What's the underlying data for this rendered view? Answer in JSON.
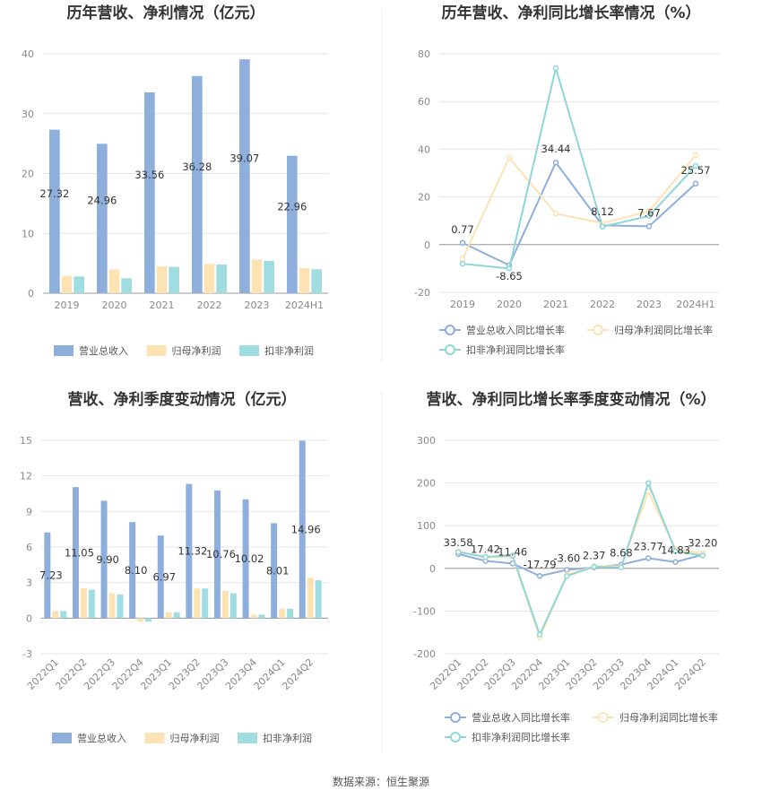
{
  "colors": {
    "revenue": "#8eaedb",
    "net_profit": "#fde3b4",
    "deducted_profit": "#9fdde0",
    "revenue_growth": "#8eaedb",
    "net_profit_growth": "#fde3b4",
    "deducted_profit_growth": "#8fd6d6",
    "grid": "#e6e6e6",
    "axis": "#999999"
  },
  "footer": "数据来源：恒生聚源",
  "chart_data": [
    {
      "id": "annual-amount",
      "type": "bar",
      "title": "历年营收、净利情况（亿元）",
      "categories": [
        "2019",
        "2020",
        "2021",
        "2022",
        "2023",
        "2024H1"
      ],
      "yticks": [
        0,
        10,
        20,
        30,
        40
      ],
      "ylim": [
        0,
        40
      ],
      "series": [
        {
          "name": "营业总收入",
          "values": [
            27.32,
            24.96,
            33.56,
            36.28,
            39.07,
            22.96
          ],
          "labels": [
            "27.32",
            "24.96",
            "33.56",
            "36.28",
            "39.07",
            "22.96"
          ]
        },
        {
          "name": "归母净利润",
          "values": [
            2.9,
            4.0,
            4.5,
            4.9,
            5.6,
            4.2
          ]
        },
        {
          "name": "扣非净利润",
          "values": [
            2.8,
            2.5,
            4.4,
            4.8,
            5.4,
            4.0
          ]
        }
      ]
    },
    {
      "id": "annual-growth",
      "type": "line",
      "title": "历年营收、净利同比增长率情况（%）",
      "categories": [
        "2019",
        "2020",
        "2021",
        "2022",
        "2023",
        "2024H1"
      ],
      "yticks": [
        -20,
        0,
        20,
        40,
        60,
        80
      ],
      "ylim": [
        -20,
        80
      ],
      "series": [
        {
          "name": "营业总收入同比增长率",
          "values": [
            0.77,
            -8.65,
            34.44,
            8.12,
            7.67,
            25.57
          ],
          "labels": [
            "0.77",
            "-8.65",
            "34.44",
            "8.12",
            "7.67",
            "25.57"
          ]
        },
        {
          "name": "归母净利润同比增长率",
          "values": [
            -6.0,
            36.5,
            13.0,
            9.0,
            14.0,
            37.5
          ]
        },
        {
          "name": "扣非净利润同比增长率",
          "values": [
            -8.0,
            -10.0,
            74.0,
            7.5,
            12.0,
            33.0
          ]
        }
      ]
    },
    {
      "id": "quarterly-amount",
      "type": "bar",
      "title": "营收、净利季度变动情况（亿元）",
      "categories": [
        "2022Q1",
        "2022Q2",
        "2022Q3",
        "2022Q4",
        "2023Q1",
        "2023Q2",
        "2023Q3",
        "2023Q4",
        "2024Q1",
        "2024Q2"
      ],
      "yticks": [
        -3,
        0,
        3,
        6,
        9,
        12,
        15
      ],
      "ylim": [
        -3,
        15
      ],
      "series": [
        {
          "name": "营业总收入",
          "values": [
            7.23,
            11.05,
            9.9,
            8.1,
            6.97,
            11.32,
            10.76,
            10.02,
            8.01,
            14.96
          ],
          "labels": [
            "7.23",
            "11.05",
            "9.90",
            "8.10",
            "6.97",
            "11.32",
            "10.76",
            "10.02",
            "8.01",
            "14.96"
          ]
        },
        {
          "name": "归母净利润",
          "values": [
            0.6,
            2.5,
            2.1,
            -0.3,
            0.5,
            2.5,
            2.3,
            0.3,
            0.8,
            3.4
          ]
        },
        {
          "name": "扣非净利润",
          "values": [
            0.6,
            2.4,
            2.0,
            -0.3,
            0.5,
            2.5,
            2.1,
            0.3,
            0.8,
            3.2
          ]
        }
      ]
    },
    {
      "id": "quarterly-growth",
      "type": "line",
      "title": "营收、净利同比增长率季度变动情况（%）",
      "categories": [
        "2022Q1",
        "2022Q2",
        "2022Q3",
        "2022Q4",
        "2023Q1",
        "2023Q2",
        "2023Q3",
        "2023Q4",
        "2024Q1",
        "2024Q2"
      ],
      "yticks": [
        -200,
        -100,
        0,
        100,
        200,
        300
      ],
      "ylim": [
        -200,
        300
      ],
      "series": [
        {
          "name": "营业总收入同比增长率",
          "values": [
            33.58,
            17.42,
            11.46,
            -17.79,
            -3.6,
            2.37,
            8.68,
            23.77,
            14.83,
            32.2
          ],
          "labels": [
            "33.58",
            "17.42",
            "11.46",
            "-17.79",
            "-3.60",
            "2.37",
            "8.68",
            "23.77",
            "14.83",
            "32.20"
          ]
        },
        {
          "name": "归母净利润同比增长率",
          "values": [
            40,
            25,
            28,
            -162,
            -15,
            5,
            5,
            180,
            45,
            35
          ]
        },
        {
          "name": "扣非净利润同比增长率",
          "values": [
            38,
            27,
            30,
            -155,
            -18,
            4,
            2,
            200,
            40,
            30
          ]
        }
      ]
    }
  ]
}
